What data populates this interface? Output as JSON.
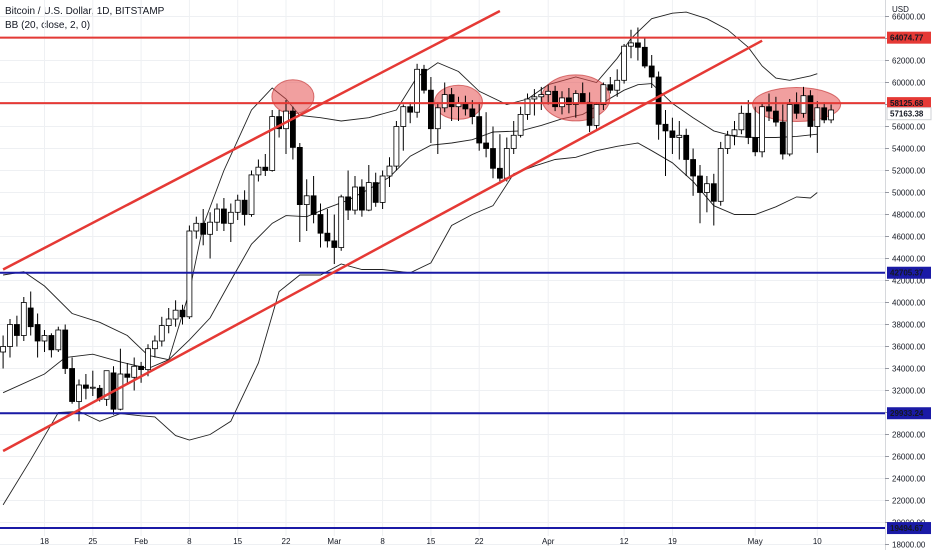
{
  "header": {
    "symbol_parts": [
      "Bitcoin / U.S. Dollar",
      "1D",
      "BITSTAMP"
    ],
    "indicator": "BB (20, close, 2, 0)"
  },
  "axis": {
    "currency": "USD",
    "y_ticks": [
      "66000.00",
      "64000.00",
      "62000.00",
      "60000.00",
      "58000.00",
      "56000.00",
      "54000.00",
      "52000.00",
      "50000.00",
      "48000.00",
      "46000.00",
      "44000.00",
      "42000.00",
      "40000.00",
      "38000.00",
      "36000.00",
      "34000.00",
      "32000.00",
      "30000.00",
      "28000.00",
      "26000.00",
      "24000.00",
      "22000.00",
      "20000.00",
      "18000.00"
    ],
    "x_ticks": [
      {
        "label": "18",
        "day": 0
      },
      {
        "label": "25",
        "day": 7
      },
      {
        "label": "Feb",
        "day": 14
      },
      {
        "label": "8",
        "day": 21
      },
      {
        "label": "15",
        "day": 28
      },
      {
        "label": "22",
        "day": 35
      },
      {
        "label": "Mar",
        "day": 42
      },
      {
        "label": "8",
        "day": 49
      },
      {
        "label": "15",
        "day": 56
      },
      {
        "label": "22",
        "day": 63
      },
      {
        "label": "Apr",
        "day": 73
      },
      {
        "label": "12",
        "day": 84
      },
      {
        "label": "19",
        "day": 91
      },
      {
        "label": "May",
        "day": 103
      },
      {
        "label": "10",
        "day": 112
      }
    ]
  },
  "chart_data": {
    "type": "candlestick",
    "y_range": [
      17500,
      67500
    ],
    "horizontal_levels": [
      {
        "value": 64074.77,
        "label": "64074.77",
        "color": "#e53935"
      },
      {
        "value": 58125.68,
        "label": "58125.68",
        "color": "#e53935"
      },
      {
        "value": 57163.38,
        "label": "57163.38",
        "color": "#ffffff"
      },
      {
        "value": 42705.37,
        "label": "42705.37",
        "color": "#1a1aa6"
      },
      {
        "value": 29933.24,
        "label": "29933.24",
        "color": "#1a1aa6"
      },
      {
        "value": 19494.67,
        "label": "19494.67",
        "color": "#1a1aa6"
      }
    ],
    "trend_lines": [
      {
        "from": [
          -6,
          43000
        ],
        "to": [
          66,
          66500
        ],
        "color": "#e53935"
      },
      {
        "from": [
          -6,
          26500
        ],
        "to": [
          104,
          63800
        ],
        "color": "#e53935"
      }
    ],
    "highlight_circles": [
      {
        "center": [
          36,
          58700
        ]
      },
      {
        "center": [
          60,
          58200
        ]
      },
      {
        "center": [
          77,
          58600
        ]
      },
      {
        "center": [
          109,
          58000
        ]
      }
    ],
    "bollinger": {
      "upper": [
        [
          -6,
          42500
        ],
        [
          -3,
          42800
        ],
        [
          0,
          41500
        ],
        [
          4,
          39000
        ],
        [
          8,
          38200
        ],
        [
          12,
          37000
        ],
        [
          15,
          35200
        ],
        [
          18,
          34800
        ],
        [
          21,
          41000
        ],
        [
          23,
          47000
        ],
        [
          26,
          52000
        ],
        [
          30,
          57500
        ],
        [
          33,
          59500
        ],
        [
          35,
          58500
        ],
        [
          37,
          57000
        ],
        [
          40,
          56800
        ],
        [
          43,
          56500
        ],
        [
          47,
          56800
        ],
        [
          51,
          57500
        ],
        [
          54,
          60500
        ],
        [
          57,
          61800
        ],
        [
          60,
          61000
        ],
        [
          63,
          59200
        ],
        [
          67,
          58000
        ],
        [
          70,
          58500
        ],
        [
          73,
          59800
        ],
        [
          77,
          60500
        ],
        [
          80,
          60000
        ],
        [
          83,
          62200
        ],
        [
          85,
          64000
        ],
        [
          88,
          65800
        ],
        [
          91,
          66300
        ],
        [
          93,
          66400
        ],
        [
          96,
          65800
        ],
        [
          99,
          64800
        ],
        [
          102,
          63200
        ],
        [
          104,
          61500
        ],
        [
          106,
          60400
        ],
        [
          108,
          60200
        ],
        [
          111,
          60600
        ],
        [
          112,
          60800
        ]
      ],
      "middle": [
        [
          -6,
          31800
        ],
        [
          0,
          33500
        ],
        [
          3,
          35000
        ],
        [
          7,
          35300
        ],
        [
          11,
          34600
        ],
        [
          15,
          34000
        ],
        [
          18,
          34800
        ],
        [
          21,
          36600
        ],
        [
          24,
          38600
        ],
        [
          27,
          42000
        ],
        [
          30,
          45300
        ],
        [
          33,
          47200
        ],
        [
          35,
          47900
        ],
        [
          38,
          47800
        ],
        [
          41,
          48600
        ],
        [
          44,
          49300
        ],
        [
          47,
          50300
        ],
        [
          50,
          51400
        ],
        [
          53,
          53300
        ],
        [
          56,
          54300
        ],
        [
          59,
          54500
        ],
        [
          62,
          54800
        ],
        [
          65,
          55500
        ],
        [
          69,
          55600
        ],
        [
          72,
          56100
        ],
        [
          75,
          56700
        ],
        [
          78,
          57100
        ],
        [
          81,
          58200
        ],
        [
          84,
          59300
        ],
        [
          86,
          59800
        ],
        [
          88,
          59900
        ],
        [
          91,
          58100
        ],
        [
          94,
          56800
        ],
        [
          97,
          55600
        ],
        [
          100,
          55100
        ],
        [
          103,
          55000
        ],
        [
          106,
          55000
        ],
        [
          109,
          55100
        ],
        [
          112,
          55300
        ]
      ],
      "lower": [
        [
          -6,
          21600
        ],
        [
          -2,
          25700
        ],
        [
          2,
          30000
        ],
        [
          5,
          30100
        ],
        [
          8,
          29200
        ],
        [
          11,
          29900
        ],
        [
          14,
          29700
        ],
        [
          16,
          29600
        ],
        [
          19,
          27900
        ],
        [
          21,
          27500
        ],
        [
          24,
          28000
        ],
        [
          27,
          29200
        ],
        [
          31,
          34500
        ],
        [
          34,
          41000
        ],
        [
          37,
          42500
        ],
        [
          40,
          42500
        ],
        [
          43,
          43500
        ],
        [
          46,
          43000
        ],
        [
          49,
          43000
        ],
        [
          53,
          42700
        ],
        [
          56,
          43600
        ],
        [
          59,
          47000
        ],
        [
          62,
          48000
        ],
        [
          65,
          48800
        ],
        [
          68,
          51700
        ],
        [
          71,
          52400
        ],
        [
          74,
          53000
        ],
        [
          77,
          53200
        ],
        [
          80,
          53800
        ],
        [
          83,
          54200
        ],
        [
          86,
          54500
        ],
        [
          88,
          53800
        ],
        [
          91,
          52700
        ],
        [
          94,
          51000
        ],
        [
          97,
          48800
        ],
        [
          100,
          48000
        ],
        [
          103,
          48000
        ],
        [
          106,
          48700
        ],
        [
          109,
          49600
        ],
        [
          111,
          49500
        ],
        [
          112,
          50000
        ]
      ]
    },
    "candles": [
      [
        -6,
        35500,
        37000,
        34000,
        36000
      ],
      [
        -5,
        36000,
        38500,
        35000,
        38000
      ],
      [
        -4,
        38000,
        38800,
        36000,
        37000
      ],
      [
        -3,
        37000,
        40500,
        36500,
        40000
      ],
      [
        -2,
        39500,
        41000,
        37000,
        37800
      ],
      [
        -1,
        38000,
        39000,
        35000,
        36500
      ],
      [
        0,
        36500,
        37500,
        35500,
        37000
      ],
      [
        1,
        37000,
        37200,
        35000,
        35700
      ],
      [
        2,
        35700,
        37800,
        35500,
        37500
      ],
      [
        3,
        37500,
        38000,
        33500,
        34000
      ],
      [
        4,
        34000,
        35000,
        30800,
        31000
      ],
      [
        5,
        31000,
        33000,
        29200,
        32500
      ],
      [
        6,
        32500,
        33500,
        31200,
        32200
      ],
      [
        7,
        32300,
        33800,
        31500,
        32300
      ],
      [
        8,
        32200,
        32500,
        31000,
        31200
      ],
      [
        9,
        31200,
        33800,
        30600,
        33800
      ],
      [
        10,
        33600,
        34200,
        29800,
        30300
      ],
      [
        11,
        30300,
        35800,
        30200,
        33500
      ],
      [
        12,
        33500,
        34500,
        32500,
        33200
      ],
      [
        13,
        33200,
        35000,
        32000,
        34200
      ],
      [
        14,
        34200,
        34600,
        32700,
        33900
      ],
      [
        15,
        33900,
        36200,
        33300,
        35800
      ],
      [
        16,
        35800,
        37000,
        35000,
        36500
      ],
      [
        17,
        36500,
        38700,
        36000,
        37900
      ],
      [
        18,
        37900,
        39500,
        37200,
        38500
      ],
      [
        19,
        38500,
        40200,
        37800,
        39300
      ],
      [
        20,
        39300,
        39800,
        38000,
        38700
      ],
      [
        21,
        38700,
        47000,
        38500,
        46500
      ],
      [
        22,
        46500,
        47800,
        45800,
        47200
      ],
      [
        23,
        47200,
        48500,
        45200,
        46200
      ],
      [
        24,
        46200,
        48200,
        44000,
        47300
      ],
      [
        25,
        47300,
        49000,
        46500,
        48500
      ],
      [
        26,
        48500,
        49500,
        46500,
        47200
      ],
      [
        27,
        47200,
        49000,
        45500,
        48200
      ],
      [
        28,
        48200,
        49800,
        47500,
        49300
      ],
      [
        29,
        49300,
        50200,
        47000,
        48000
      ],
      [
        30,
        48000,
        52000,
        47800,
        51600
      ],
      [
        31,
        51600,
        53000,
        51000,
        52300
      ],
      [
        32,
        52300,
        53500,
        51500,
        52000
      ],
      [
        33,
        52000,
        57500,
        51900,
        56900
      ],
      [
        34,
        56900,
        57500,
        55000,
        55800
      ],
      [
        35,
        55800,
        58400,
        53500,
        57400
      ],
      [
        36,
        57400,
        57800,
        53000,
        54100
      ],
      [
        37,
        54100,
        54500,
        45500,
        48900
      ],
      [
        38,
        48900,
        51200,
        46500,
        49700
      ],
      [
        39,
        49700,
        51500,
        47200,
        48000
      ],
      [
        40,
        48000,
        49000,
        45000,
        46300
      ],
      [
        41,
        46300,
        48500,
        45000,
        45600
      ],
      [
        42,
        45600,
        48000,
        43500,
        45000
      ],
      [
        43,
        45000,
        49800,
        44700,
        49600
      ],
      [
        44,
        49600,
        52000,
        47500,
        48400
      ],
      [
        45,
        48400,
        51500,
        48000,
        50500
      ],
      [
        46,
        50500,
        51200,
        47800,
        48400
      ],
      [
        47,
        48400,
        52500,
        48300,
        50900
      ],
      [
        48,
        50900,
        51800,
        48700,
        49100
      ],
      [
        49,
        49100,
        52000,
        48500,
        51500
      ],
      [
        50,
        51500,
        53200,
        50500,
        52400
      ],
      [
        51,
        52400,
        56500,
        52000,
        56000
      ],
      [
        52,
        56000,
        58000,
        53800,
        57800
      ],
      [
        53,
        57800,
        58200,
        56300,
        57300
      ],
      [
        54,
        57300,
        61700,
        56800,
        61200
      ],
      [
        55,
        61200,
        61600,
        59000,
        59300
      ],
      [
        56,
        59300,
        60500,
        54500,
        55800
      ],
      [
        57,
        55800,
        58200,
        53500,
        57700
      ],
      [
        58,
        57700,
        60000,
        57300,
        58900
      ],
      [
        59,
        58900,
        59500,
        56500,
        57800
      ],
      [
        60,
        57800,
        58700,
        56500,
        58100
      ],
      [
        61,
        58100,
        58800,
        57000,
        57600
      ],
      [
        62,
        57600,
        58400,
        56200,
        56900
      ],
      [
        63,
        56900,
        58200,
        53800,
        54500
      ],
      [
        64,
        54500,
        57300,
        53200,
        54000
      ],
      [
        65,
        54000,
        56000,
        51300,
        52200
      ],
      [
        66,
        52200,
        55300,
        50800,
        51300
      ],
      [
        67,
        51300,
        55000,
        51000,
        54000
      ],
      [
        68,
        54000,
        56500,
        53500,
        55200
      ],
      [
        69,
        55200,
        57800,
        55000,
        57100
      ],
      [
        70,
        57100,
        59000,
        56600,
        58500
      ],
      [
        71,
        58500,
        59400,
        57000,
        58700
      ],
      [
        72,
        58700,
        59600,
        57500,
        58900
      ],
      [
        73,
        58900,
        59800,
        58000,
        59200
      ],
      [
        74,
        59200,
        59700,
        57400,
        57800
      ],
      [
        75,
        57800,
        59200,
        57100,
        58600
      ],
      [
        76,
        58600,
        59500,
        57200,
        58000
      ],
      [
        77,
        58000,
        59300,
        56800,
        59000
      ],
      [
        78,
        59000,
        60000,
        58300,
        58200
      ],
      [
        79,
        58200,
        59100,
        55500,
        56100
      ],
      [
        80,
        56100,
        58200,
        55800,
        58000
      ],
      [
        81,
        58000,
        60000,
        57500,
        59800
      ],
      [
        82,
        59800,
        60500,
        59000,
        59300
      ],
      [
        83,
        59300,
        61200,
        58700,
        60200
      ],
      [
        84,
        60200,
        63500,
        59900,
        63300
      ],
      [
        85,
        63300,
        64800,
        62200,
        63600
      ],
      [
        86,
        63600,
        65000,
        62000,
        63200
      ],
      [
        87,
        63200,
        64000,
        61300,
        61500
      ],
      [
        88,
        61500,
        62500,
        59500,
        60500
      ],
      [
        89,
        60500,
        61000,
        54800,
        56200
      ],
      [
        90,
        56200,
        57500,
        51500,
        55600
      ],
      [
        91,
        55600,
        56800,
        53500,
        55000
      ],
      [
        92,
        55000,
        56500,
        53000,
        55200
      ],
      [
        93,
        55200,
        55800,
        51500,
        53000
      ],
      [
        94,
        53000,
        54000,
        49700,
        51500
      ],
      [
        95,
        51500,
        52500,
        47200,
        50000
      ],
      [
        96,
        50000,
        51500,
        48200,
        50800
      ],
      [
        97,
        50800,
        51700,
        47000,
        49200
      ],
      [
        98,
        49200,
        54600,
        48800,
        54000
      ],
      [
        99,
        54000,
        55600,
        53500,
        55200
      ],
      [
        100,
        55200,
        56500,
        54300,
        55700
      ],
      [
        101,
        55700,
        57900,
        55300,
        57200
      ],
      [
        102,
        57200,
        58400,
        54400,
        55000
      ],
      [
        103,
        55000,
        57800,
        53300,
        53700
      ],
      [
        104,
        53700,
        58200,
        53200,
        57800
      ],
      [
        105,
        57800,
        59000,
        56500,
        57400
      ],
      [
        106,
        57400,
        58700,
        56000,
        56400
      ],
      [
        107,
        56400,
        58000,
        53000,
        53500
      ],
      [
        108,
        53500,
        58500,
        53300,
        58000
      ],
      [
        109,
        58000,
        59100,
        56700,
        57200
      ],
      [
        110,
        57200,
        59600,
        56800,
        58800
      ],
      [
        111,
        58800,
        59300,
        55000,
        56000
      ],
      [
        112,
        56000,
        58300,
        53600,
        57700
      ],
      [
        113,
        57700,
        58200,
        56300,
        56600
      ],
      [
        114,
        56600,
        58000,
        56300,
        57500
      ]
    ]
  }
}
